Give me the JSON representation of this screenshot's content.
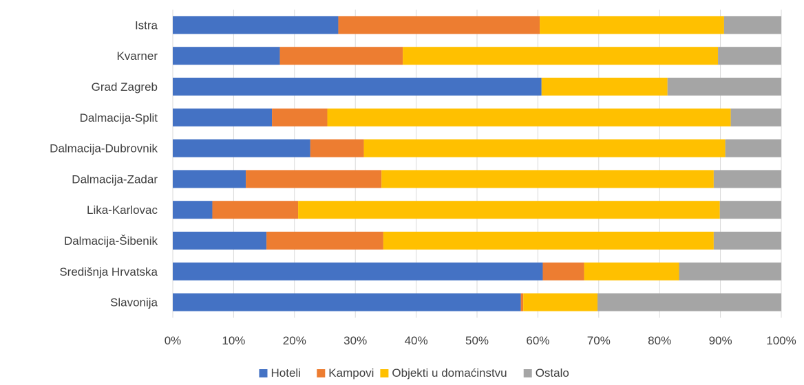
{
  "chart_data": {
    "type": "bar",
    "orientation": "horizontal",
    "stacked": "percent",
    "title": "",
    "xlabel": "",
    "ylabel": "",
    "xlim": [
      0,
      100
    ],
    "x_ticks": [
      "0%",
      "10%",
      "20%",
      "30%",
      "40%",
      "50%",
      "60%",
      "70%",
      "80%",
      "90%",
      "100%"
    ],
    "grid": true,
    "legend_position": "bottom",
    "categories": [
      "Istra",
      "Kvarner",
      "Grad Zagreb",
      "Dalmacija-Split",
      "Dalmacija-Dubrovnik",
      "Dalmacija-Zadar",
      "Lika-Karlovac",
      "Dalmacija-Šibenik",
      "Središnja Hrvatska",
      "Slavonija"
    ],
    "series": [
      {
        "name": "Hoteli",
        "color": "#4472c4",
        "values": [
          27.2,
          17.6,
          60.6,
          16.3,
          22.6,
          12.0,
          6.5,
          15.4,
          60.8,
          57.2
        ]
      },
      {
        "name": "Kampovi",
        "color": "#ed7d31",
        "values": [
          33.1,
          20.2,
          0.0,
          9.1,
          8.8,
          22.3,
          14.1,
          19.2,
          6.8,
          0.4
        ]
      },
      {
        "name": "Objekti u domaćinstvu",
        "color": "#ffc000",
        "values": [
          30.3,
          51.8,
          20.7,
          66.3,
          59.4,
          54.6,
          69.3,
          54.3,
          15.6,
          12.2
        ]
      },
      {
        "name": "Ostalo",
        "color": "#a5a5a5",
        "values": [
          9.4,
          10.4,
          18.7,
          8.3,
          9.2,
          11.1,
          10.1,
          11.1,
          16.8,
          30.2
        ]
      }
    ]
  }
}
